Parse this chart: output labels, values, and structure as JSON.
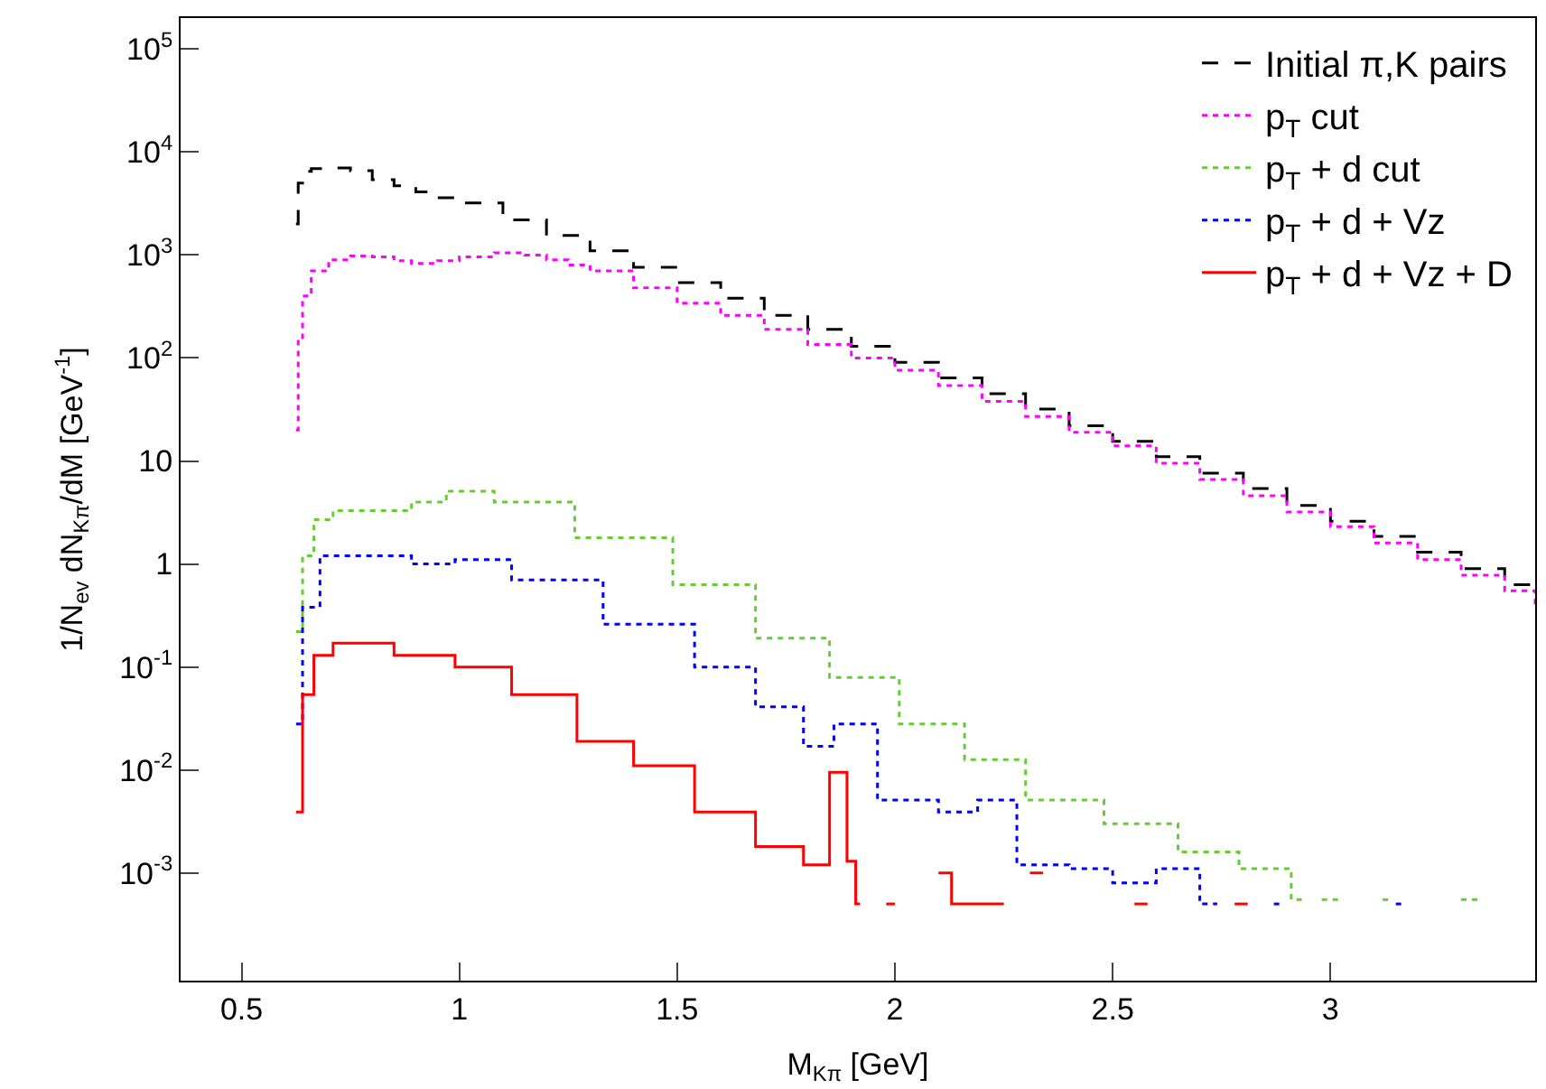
{
  "chart_data": {
    "type": "step",
    "xlabel": "M$_{Kπ}$ [GeV]",
    "ylabel": "1/N$_{ev}$ dN$_{Kπ}$/dM [GeV$^{-1}$]",
    "log": "y",
    "legend": "top right",
    "marker": "none",
    "xlim": [
      0.36,
      3.47
    ],
    "xticks": [
      0.5,
      1,
      1.5,
      2,
      2.5,
      3
    ],
    "ylim": [
      9e-05,
      200000
    ],
    "yticks": [
      {
        "value": 0.001,
        "label": "10$^{-3}$"
      },
      {
        "value": 0.01,
        "label": "10$^{-2}$"
      },
      {
        "value": 0.1,
        "label": "10$^{-1}$"
      },
      1,
      10,
      {
        "value": 100,
        "label": "10$^{2}$"
      },
      {
        "value": 1000,
        "label": "10$^{3}$"
      },
      {
        "value": 10000,
        "label": "10$^{4}$"
      },
      {
        "value": 100000,
        "label": "10$^{5}$"
      }
    ],
    "series": [
      {
        "name": "Initial π,K pairs",
        "color": "#000000",
        "line_style": "dashed",
        "x": [
          0.625,
          0.63,
          0.64,
          0.66,
          0.7,
          0.75,
          0.8,
          0.85,
          0.9,
          0.95,
          1.0,
          1.1,
          1.2,
          1.3,
          1.4,
          1.5,
          1.6,
          1.7,
          1.8,
          1.9,
          2.0,
          2.1,
          2.2,
          2.3,
          2.4,
          2.5,
          2.6,
          2.7,
          2.8,
          2.9,
          3.0,
          3.1,
          3.2,
          3.3,
          3.4,
          3.47
        ],
        "values": [
          2000,
          5000,
          6500,
          6900,
          7000,
          6600,
          5400,
          4700,
          4100,
          3600,
          3200,
          2200,
          1550,
          1100,
          760,
          540,
          380,
          260,
          190,
          130,
          91,
          64,
          45,
          32,
          22,
          15.5,
          11,
          7.6,
          5.4,
          3.7,
          2.6,
          1.85,
          1.3,
          0.9,
          0.63,
          0.5
        ]
      },
      {
        "name": "p$_{T}$ cut",
        "color": "#ff00ff",
        "line_style": "dotted",
        "x": [
          0.625,
          0.63,
          0.64,
          0.66,
          0.7,
          0.75,
          0.8,
          0.85,
          0.89,
          0.95,
          1.0,
          1.08,
          1.15,
          1.2,
          1.25,
          1.3,
          1.4,
          1.5,
          1.6,
          1.7,
          1.8,
          1.9,
          2.0,
          2.1,
          2.2,
          2.3,
          2.4,
          2.5,
          2.6,
          2.7,
          2.8,
          2.9,
          3.0,
          3.1,
          3.2,
          3.3,
          3.4,
          3.47
        ],
        "values": [
          20,
          150,
          400,
          700,
          900,
          980,
          960,
          880,
          830,
          880,
          960,
          1050,
          1000,
          900,
          800,
          700,
          480,
          340,
          260,
          190,
          135,
          100,
          76,
          54,
          38,
          27,
          19,
          14,
          9.5,
          6.6,
          4.6,
          3.2,
          2.3,
          1.6,
          1.1,
          0.78,
          0.55,
          0.4
        ]
      },
      {
        "name": "p$_{T}$ + d cut",
        "color": "#66cc33",
        "line_style": "dotted",
        "x": [
          0.625,
          0.64,
          0.666,
          0.71,
          0.89,
          0.97,
          1.08,
          1.265,
          1.49,
          1.68,
          1.85,
          2.01,
          2.16,
          2.3,
          2.48,
          2.65,
          2.79,
          2.91,
          2.94,
          2.95,
          2.98,
          3.03,
          3.04,
          3.12,
          3.14,
          3.15,
          3.3,
          3.34
        ],
        "values": [
          0.22,
          1.2,
          2.7,
          3.3,
          4.0,
          5.1,
          4.0,
          1.8,
          0.63,
          0.19,
          0.079,
          0.028,
          0.0126,
          0.0051,
          0.003,
          0.0016,
          0.0011,
          0.00055,
          0.00055,
          null,
          0.00055,
          0.00055,
          null,
          0.00055,
          0.00055,
          null,
          0.00055,
          0.00055
        ]
      },
      {
        "name": "p$_{T}$ + d + Vz",
        "color": "#0000ff",
        "line_style": "dotted",
        "x": [
          0.625,
          0.64,
          0.68,
          0.89,
          0.99,
          1.12,
          1.33,
          1.54,
          1.68,
          1.79,
          1.86,
          1.96,
          2.1,
          2.19,
          2.28,
          2.4,
          2.5,
          2.6,
          2.7,
          2.74,
          2.75,
          2.87,
          2.89,
          2.9,
          3.15,
          3.17
        ],
        "values": [
          0.028,
          0.38,
          1.2,
          1.0,
          1.1,
          0.7,
          0.26,
          0.1,
          0.041,
          0.017,
          0.028,
          0.0051,
          0.0039,
          0.0051,
          0.0012,
          0.0011,
          0.0008,
          0.0011,
          0.0005,
          0.0005,
          null,
          0.0005,
          0.0005,
          null,
          0.0005,
          0.0005
        ]
      },
      {
        "name": "p$_{T}$ + d + Vz + D",
        "color": "#ff0000",
        "line_style": "solid",
        "x": [
          0.625,
          0.64,
          0.666,
          0.71,
          0.85,
          0.99,
          1.12,
          1.27,
          1.4,
          1.54,
          1.68,
          1.79,
          1.85,
          1.89,
          1.91,
          1.92,
          1.93,
          1.98,
          2.0,
          2.01,
          2.1,
          2.13,
          2.25,
          2.26,
          2.31,
          2.34,
          2.35,
          2.55,
          2.58,
          2.59,
          2.78,
          2.81
        ],
        "values": [
          0.0039,
          0.054,
          0.13,
          0.17,
          0.13,
          0.1,
          0.054,
          0.019,
          0.011,
          0.0039,
          0.0018,
          0.0012,
          0.0095,
          0.0013,
          0.0005,
          0.0005,
          null,
          0.0005,
          0.0005,
          null,
          0.001,
          0.0005,
          0.0005,
          null,
          0.001,
          0.001,
          null,
          0.0005,
          0.0005,
          null,
          0.0005,
          0.0005
        ]
      }
    ]
  }
}
